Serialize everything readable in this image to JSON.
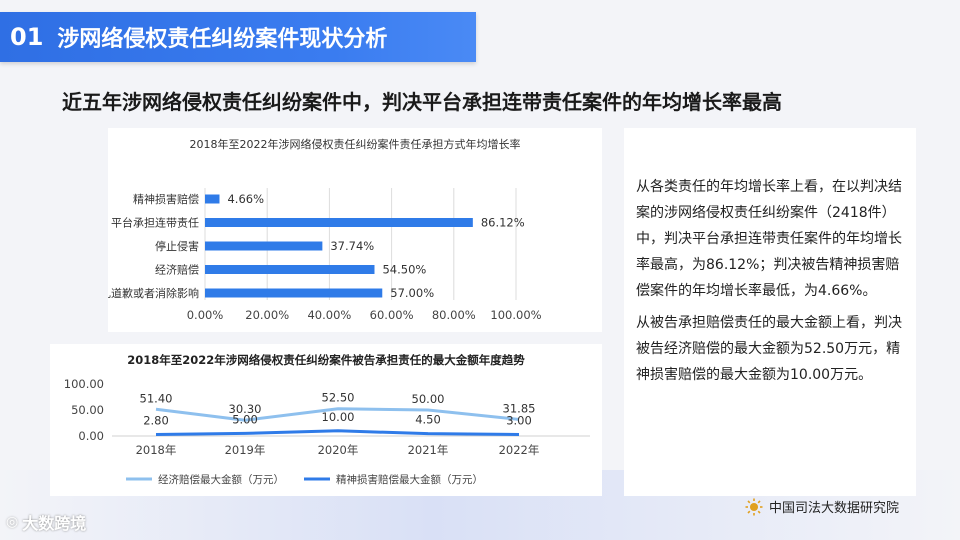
{
  "header": {
    "number": "01",
    "title": "涉网络侵权责任纠纷案件现状分析"
  },
  "headline": "近五年涉网络侵权责任纠纷案件中，判决平台承担连带责任案件的年均增长率最高",
  "analysis": {
    "paragraph1": "从各类责任的年均增长率上看，在以判决结案的涉网络侵权责任纠纷案件（2418件）中，判决平台承担连带责任案件的年均增长率最高，为86.12%；判决被告精神损害赔偿案件的年均增长率最低，为4.66%。",
    "paragraph2": "从被告承担赔偿责任的最大金额上看，判决被告经济赔偿的最大金额为52.50万元，精神损害赔偿的最大金额为10.00万元。"
  },
  "footer": {
    "logo_text": "大数跨境",
    "source": "中国司法大数据研究院"
  },
  "colors": {
    "header": "#3476eb",
    "bar": "#2f7be8",
    "line_light": "#8ec0ee",
    "line_dark": "#2f7be8"
  },
  "chart_data": [
    {
      "type": "bar",
      "orientation": "horizontal",
      "title": "2018年至2022年涉网络侵权责任纠纷案件责任承担方式年均增长率",
      "categories": [
        "精神损害赔偿",
        "平台承担连带责任",
        "停止侵害",
        "经济赔偿",
        "赔礼道歉或者消除影响"
      ],
      "values": [
        4.66,
        86.12,
        37.74,
        54.5,
        57.0
      ],
      "value_labels": [
        "4.66%",
        "86.12%",
        "37.74%",
        "54.50%",
        "57.00%"
      ],
      "xlim": [
        0,
        100
      ],
      "x_ticks": [
        "0.00%",
        "20.00%",
        "40.00%",
        "60.00%",
        "80.00%",
        "100.00%"
      ],
      "grid": true
    },
    {
      "type": "line",
      "title": "2018年至2022年涉网络侵权责任纠纷案件被告承担责任的最大金额年度趋势",
      "categories": [
        "2018年",
        "2019年",
        "2020年",
        "2021年",
        "2022年"
      ],
      "series": [
        {
          "name": "经济赔偿最大金额（万元）",
          "values": [
            51.4,
            30.3,
            52.5,
            50.0,
            31.85
          ],
          "labels": [
            "51.40",
            "30.30",
            "52.50",
            "50.00",
            "31.85"
          ]
        },
        {
          "name": "精神损害赔偿最大金额（万元）",
          "values": [
            2.8,
            5.0,
            10.0,
            4.5,
            3.0
          ],
          "labels": [
            "2.80",
            "5.00",
            "10.00",
            "4.50",
            "3.00"
          ]
        }
      ],
      "ylim": [
        0,
        100
      ],
      "y_ticks": [
        "0.00",
        "50.00",
        "100.00"
      ],
      "legend": "bottom"
    }
  ]
}
